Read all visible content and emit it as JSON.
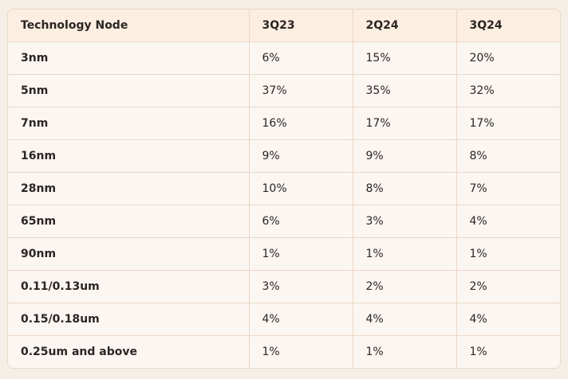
{
  "table": {
    "headers": [
      "Technology Node",
      "3Q23",
      "2Q24",
      "3Q24"
    ],
    "rows": [
      {
        "node": "3nm",
        "q3_23": "6%",
        "q2_24": "15%",
        "q3_24": "20%"
      },
      {
        "node": "5nm",
        "q3_23": "37%",
        "q2_24": "35%",
        "q3_24": "32%"
      },
      {
        "node": "7nm",
        "q3_23": "16%",
        "q2_24": "17%",
        "q3_24": "17%"
      },
      {
        "node": "16nm",
        "q3_23": "9%",
        "q2_24": "9%",
        "q3_24": "8%"
      },
      {
        "node": "28nm",
        "q3_23": "10%",
        "q2_24": "8%",
        "q3_24": "7%"
      },
      {
        "node": "65nm",
        "q3_23": "6%",
        "q2_24": "3%",
        "q3_24": "4%"
      },
      {
        "node": "90nm",
        "q3_23": "1%",
        "q2_24": "1%",
        "q3_24": "1%"
      },
      {
        "node": "0.11/0.13um",
        "q3_23": "3%",
        "q2_24": "2%",
        "q3_24": "2%"
      },
      {
        "node": "0.15/0.18um",
        "q3_23": "4%",
        "q2_24": "4%",
        "q3_24": "4%"
      },
      {
        "node": "0.25um and above",
        "q3_23": "1%",
        "q2_24": "1%",
        "q3_24": "1%"
      }
    ]
  },
  "colors": {
    "header_bg": "#fceee1",
    "cell_bg": "#fbf6f2",
    "border": "#ecd7c6",
    "page_bg": "#f4eee6",
    "text": "#2b2523"
  }
}
